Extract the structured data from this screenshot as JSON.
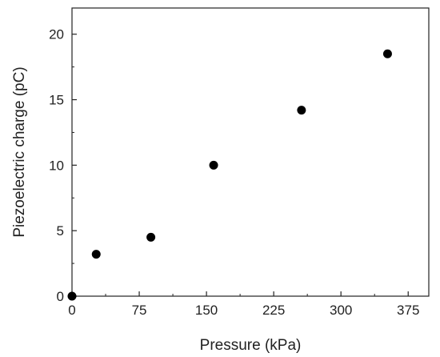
{
  "chart_data": {
    "type": "scatter",
    "title": "",
    "xlabel": "Pressure (kPa)",
    "ylabel": "Piezoelectric charge (pC)",
    "xlim": [
      0,
      398
    ],
    "ylim": [
      0,
      22
    ],
    "x_ticks": [
      0,
      75,
      150,
      225,
      300,
      375
    ],
    "y_ticks": [
      0,
      5,
      10,
      15,
      20
    ],
    "x_tick_labels": [
      "0",
      "75",
      "150",
      "225",
      "300",
      "375"
    ],
    "y_tick_labels": [
      "0",
      "5",
      "10",
      "15",
      "20"
    ],
    "grid": false,
    "legend": "none",
    "marker_color": "#000000",
    "points": [
      {
        "x": 0,
        "y": 0
      },
      {
        "x": 27,
        "y": 3.2
      },
      {
        "x": 88,
        "y": 4.5
      },
      {
        "x": 158,
        "y": 10
      },
      {
        "x": 256,
        "y": 14.2
      },
      {
        "x": 352,
        "y": 18.5
      }
    ]
  }
}
